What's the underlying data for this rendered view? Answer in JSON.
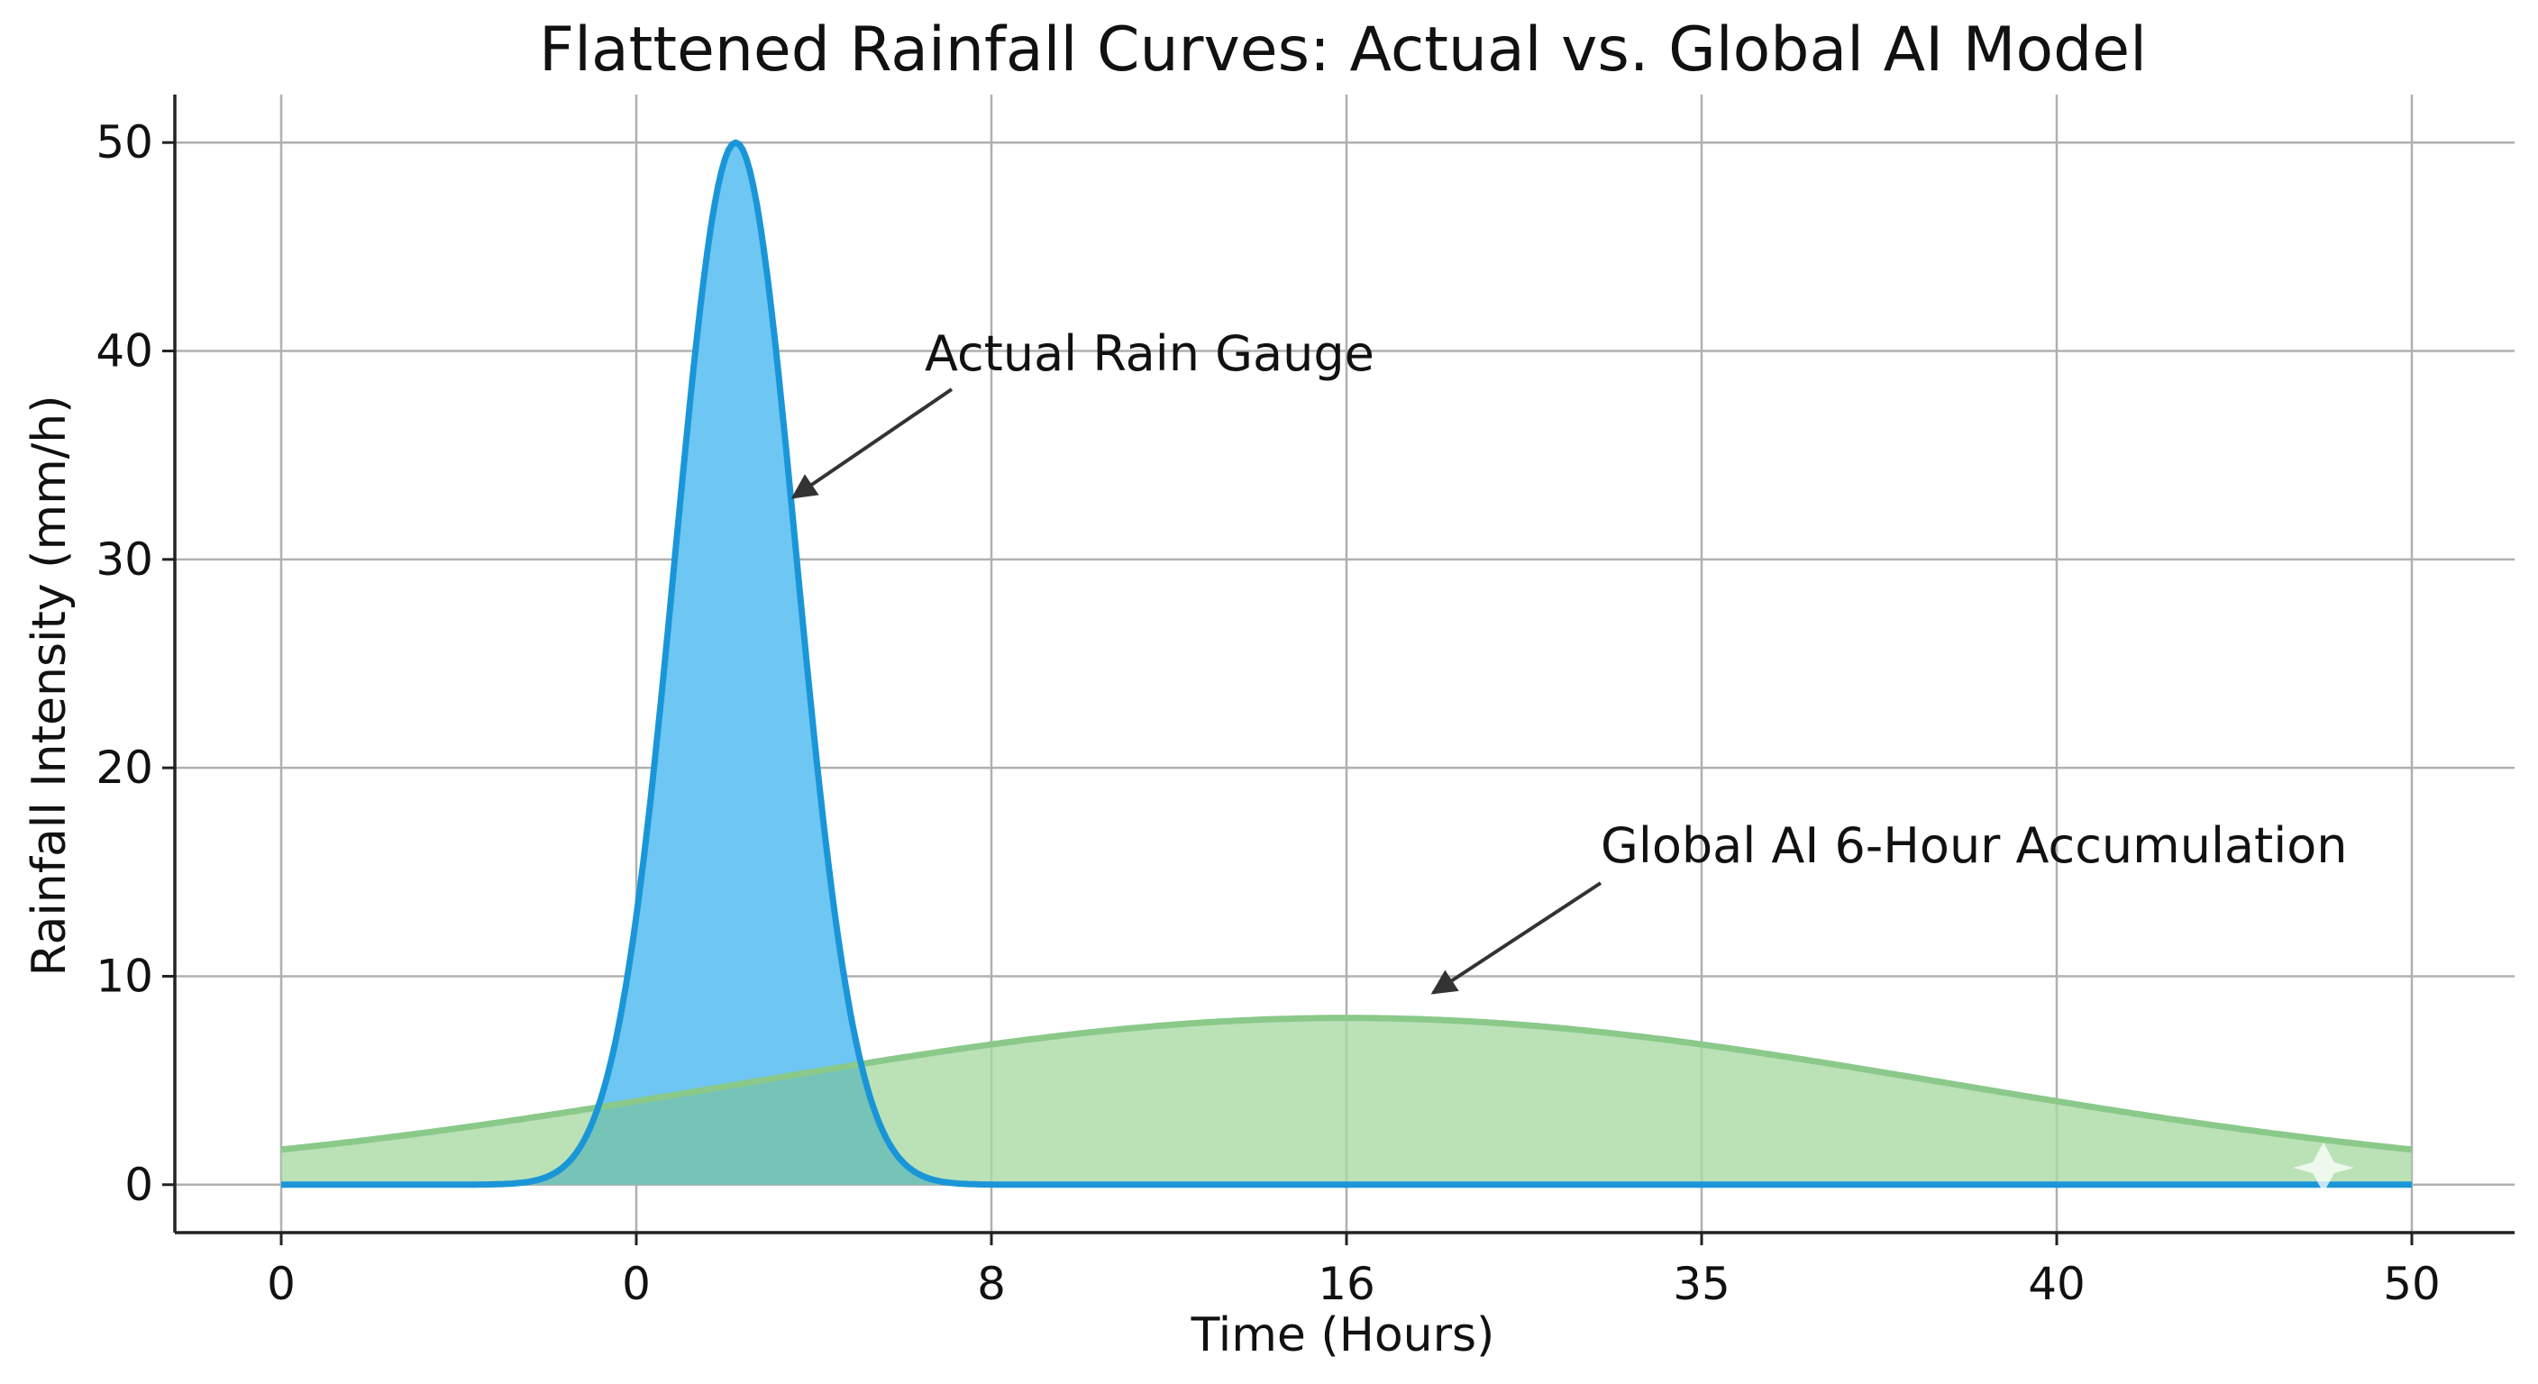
{
  "chart_data": {
    "type": "area",
    "title": "Flattened Rainfall Curves: Actual vs. Global AI Model",
    "xlabel": "Time (Hours)",
    "ylabel": "Rainfall Intensity (mm/h)",
    "x_tick_labels": [
      "0",
      "0",
      "8",
      "16",
      "35",
      "40",
      "50"
    ],
    "y_ticks": [
      0,
      10,
      20,
      30,
      40,
      50
    ],
    "xlim": [
      0,
      6
    ],
    "ylim": [
      -2.3,
      52.3
    ],
    "grid": true,
    "legend": "none",
    "series": [
      {
        "name": "Actual Rain Gauge",
        "color": "#1a96d8",
        "fill_color": "#6ec6f2",
        "peak_x": 1.28,
        "peak_y": 50,
        "width_sigma": 0.17,
        "baseline": 0
      },
      {
        "name": "Global AI 6-Hour Accumulation",
        "color": "#8ac98a",
        "fill_color": "#a8d9a3",
        "peak_x": 3.0,
        "peak_y": 8,
        "width_sigma": 1.7,
        "baseline": 0
      }
    ],
    "annotations": [
      {
        "text": "Actual Rain Gauge",
        "series_index": 0
      },
      {
        "text": "Global AI 6-Hour Accumulation",
        "series_index": 1
      }
    ]
  },
  "colors": {
    "grid": "#b0b0b0",
    "axis": "#222222",
    "overlap": "#70bfb8"
  }
}
